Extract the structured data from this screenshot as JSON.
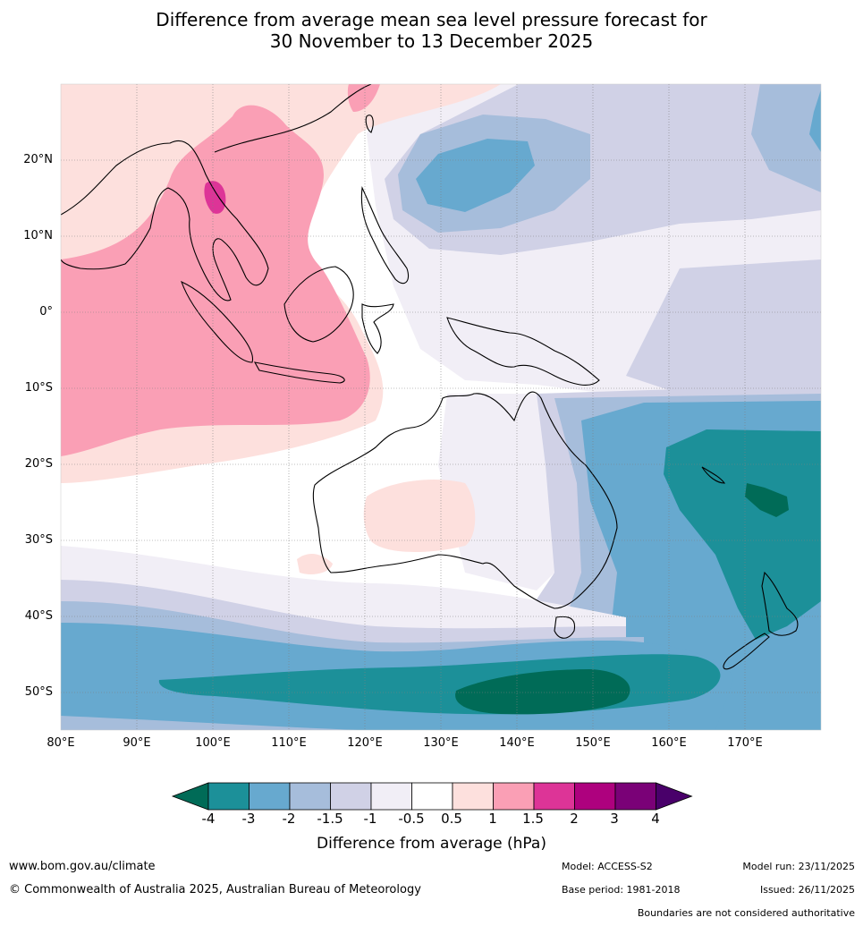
{
  "title": {
    "line1": "Difference from average mean sea level pressure forecast for",
    "line2": "30 November to 13 December 2025"
  },
  "map": {
    "lat_labels": [
      "20°N",
      "10°N",
      "0°",
      "10°S",
      "20°S",
      "30°S",
      "40°S",
      "50°S"
    ],
    "lon_labels": [
      "80°E",
      "90°E",
      "100°E",
      "110°E",
      "120°E",
      "130°E",
      "140°E",
      "150°E",
      "160°E",
      "170°E"
    ],
    "features": [
      "Australia",
      "New Zealand",
      "Maritime Continent",
      "Southeast Asia",
      "New Guinea",
      "New Caledonia"
    ]
  },
  "legend": {
    "title": "Difference from average (hPa)",
    "ticks": [
      "-4",
      "-3",
      "-2",
      "-1.5",
      "-1",
      "-0.5",
      "0.5",
      "1",
      "1.5",
      "2",
      "3",
      "4"
    ],
    "colors": [
      "#006b57",
      "#1c9099",
      "#67a9cf",
      "#a6bddb",
      "#d0d1e6",
      "#f1eef6",
      "#ffffff",
      "#fde0dd",
      "#fa9fb5",
      "#dd3497",
      "#ae017e",
      "#7a0177",
      "#49006a"
    ]
  },
  "footer": {
    "website": "www.bom.gov.au/climate",
    "copyright": "© Commonwealth of Australia 2025, Australian Bureau of Meteorology",
    "model": "Model: ACCESS-S2",
    "base_period": "Base period: 1981-2018",
    "model_run": "Model run: 23/11/2025",
    "issued": "Issued: 26/11/2025",
    "boundaries": "Boundaries are not considered authoritative"
  }
}
